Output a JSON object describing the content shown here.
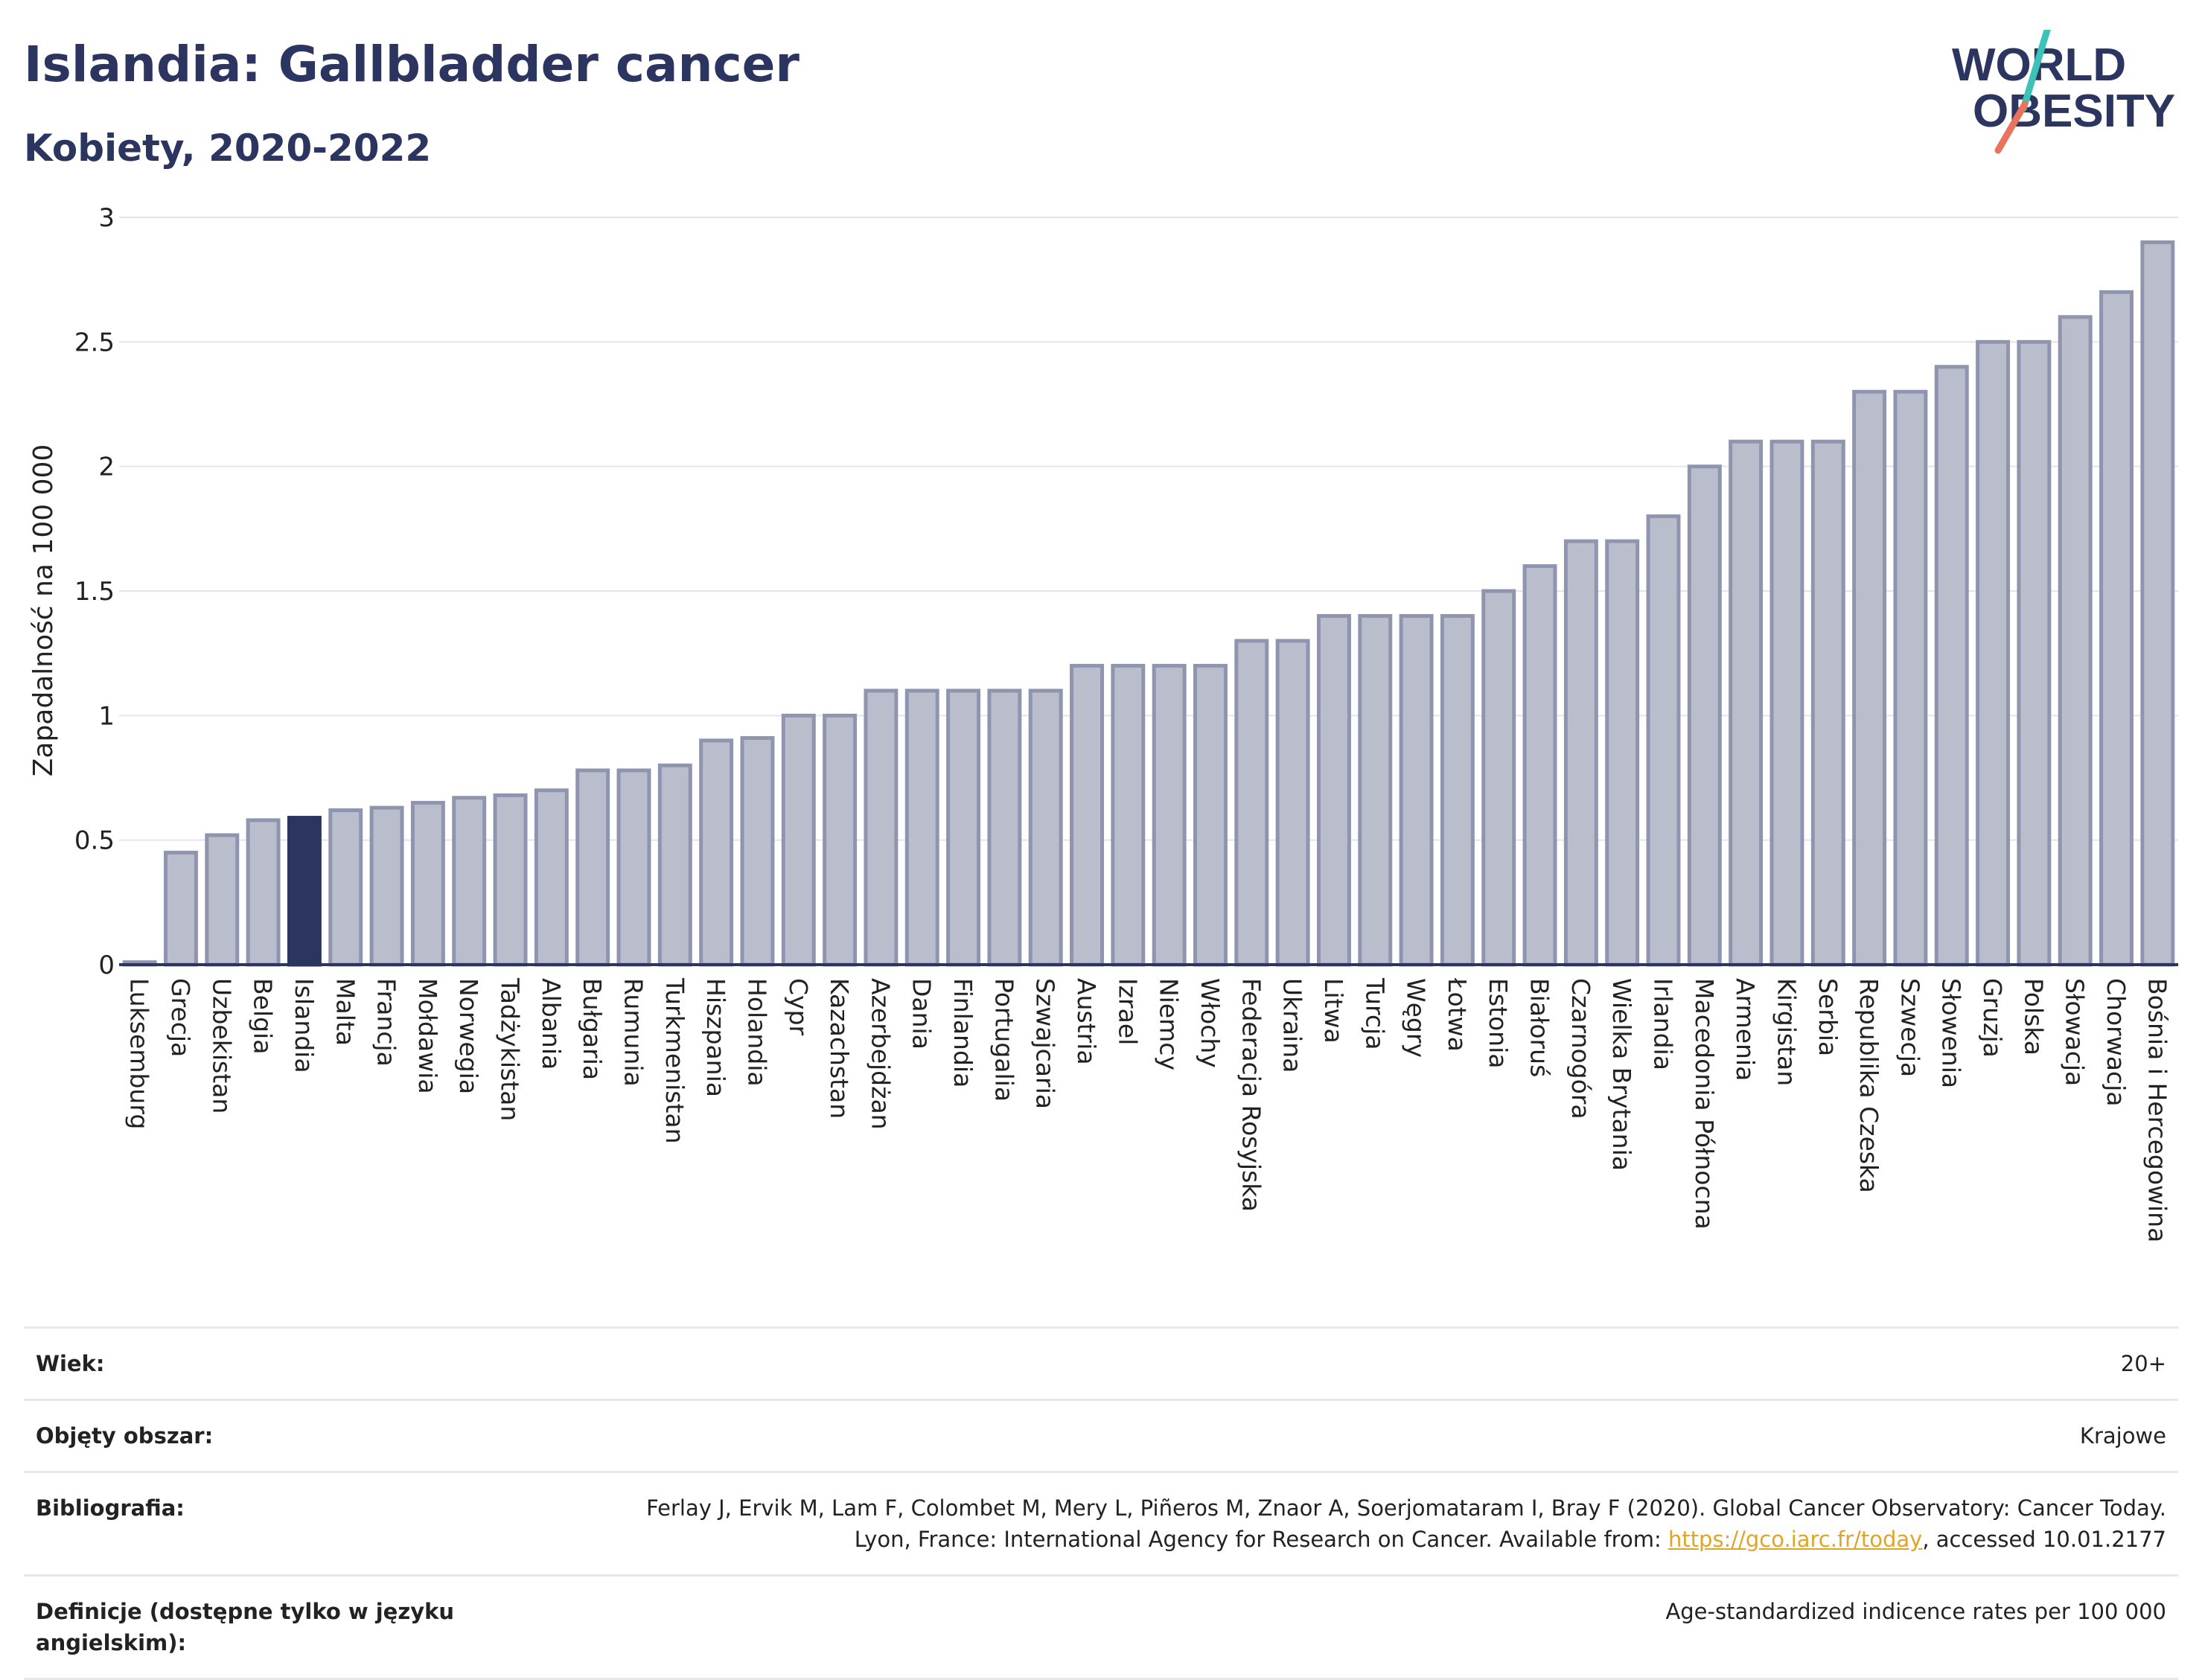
{
  "header": {
    "title": "Islandia: Gallbladder cancer",
    "subtitle": "Kobiety, 2020-2022"
  },
  "logo": {
    "line1": "WORLD",
    "line2": "OBESITY",
    "colors": {
      "text": "#2b3560",
      "slash_teal": "#3cc2b7",
      "slash_coral": "#e8735f"
    }
  },
  "colors": {
    "bar": "#b9bdcc",
    "bar_stroke": "#8f95ae",
    "highlight": "#2b3560",
    "grid": "#e3e5ec",
    "axis": "#2b3560"
  },
  "chart_data": {
    "type": "bar",
    "title": "Islandia: Gallbladder cancer",
    "subtitle": "Kobiety, 2020-2022",
    "xlabel": "",
    "ylabel": "Zapadalność na 100 000",
    "ylim": [
      0,
      3
    ],
    "yticks": [
      0,
      0.5,
      1,
      1.5,
      2,
      2.5,
      3
    ],
    "ytick_labels": [
      "0",
      "0.5",
      "1",
      "1.5",
      "2",
      "2.5",
      "3"
    ],
    "grid": true,
    "highlight": "Islandia",
    "categories": [
      "Luksemburg",
      "Grecja",
      "Uzbekistan",
      "Belgia",
      "Islandia",
      "Malta",
      "Francja",
      "Mołdawia",
      "Norwegia",
      "Tadżykistan",
      "Albania",
      "Bułgaria",
      "Rumunia",
      "Turkmenistan",
      "Hiszpania",
      "Holandia",
      "Cypr",
      "Kazachstan",
      "Azerbejdżan",
      "Dania",
      "Finlandia",
      "Portugalia",
      "Szwajcaria",
      "Austria",
      "Izrael",
      "Niemcy",
      "Włochy",
      "Federacja Rosyjska",
      "Ukraina",
      "Litwa",
      "Turcja",
      "Węgry",
      "Łotwa",
      "Estonia",
      "Białoruś",
      "Czarnogóra",
      "Wielka Brytania",
      "Irlandia",
      "Macedonia Północna",
      "Armenia",
      "Kirgistan",
      "Serbia",
      "Republika Czeska",
      "Szwecja",
      "Słowenia",
      "Gruzja",
      "Polska",
      "Słowacja",
      "Chorwacja",
      "Bośnia i Hercegowina"
    ],
    "values": [
      0.01,
      0.45,
      0.52,
      0.58,
      0.59,
      0.62,
      0.63,
      0.65,
      0.67,
      0.68,
      0.7,
      0.78,
      0.78,
      0.8,
      0.9,
      0.91,
      1.0,
      1.0,
      1.1,
      1.1,
      1.1,
      1.1,
      1.1,
      1.2,
      1.2,
      1.2,
      1.2,
      1.3,
      1.3,
      1.4,
      1.4,
      1.4,
      1.4,
      1.5,
      1.6,
      1.7,
      1.7,
      1.8,
      2.0,
      2.1,
      2.1,
      2.1,
      2.3,
      2.3,
      2.4,
      2.5,
      2.5,
      2.6,
      2.7,
      2.9
    ]
  },
  "meta": {
    "age_label": "Wiek:",
    "age_value": "20+",
    "area_label": "Objęty obszar:",
    "area_value": "Krajowe",
    "bib_label": "Bibliografia:",
    "bib_text_1": "Ferlay J, Ervik M, Lam F, Colombet M, Mery L, Piñeros M, Znaor A, Soerjomataram I, Bray F (2020). Global Cancer Observatory: Cancer Today. Lyon, France: International Agency for Research on Cancer. Available from: ",
    "bib_link": "https://gco.iarc.fr/today",
    "bib_text_2": ", accessed 10.01.2177",
    "def_label": "Definicje (dostępne tylko w języku angielskim):",
    "def_value": "Age-standardized indicence rates per 100 000"
  }
}
